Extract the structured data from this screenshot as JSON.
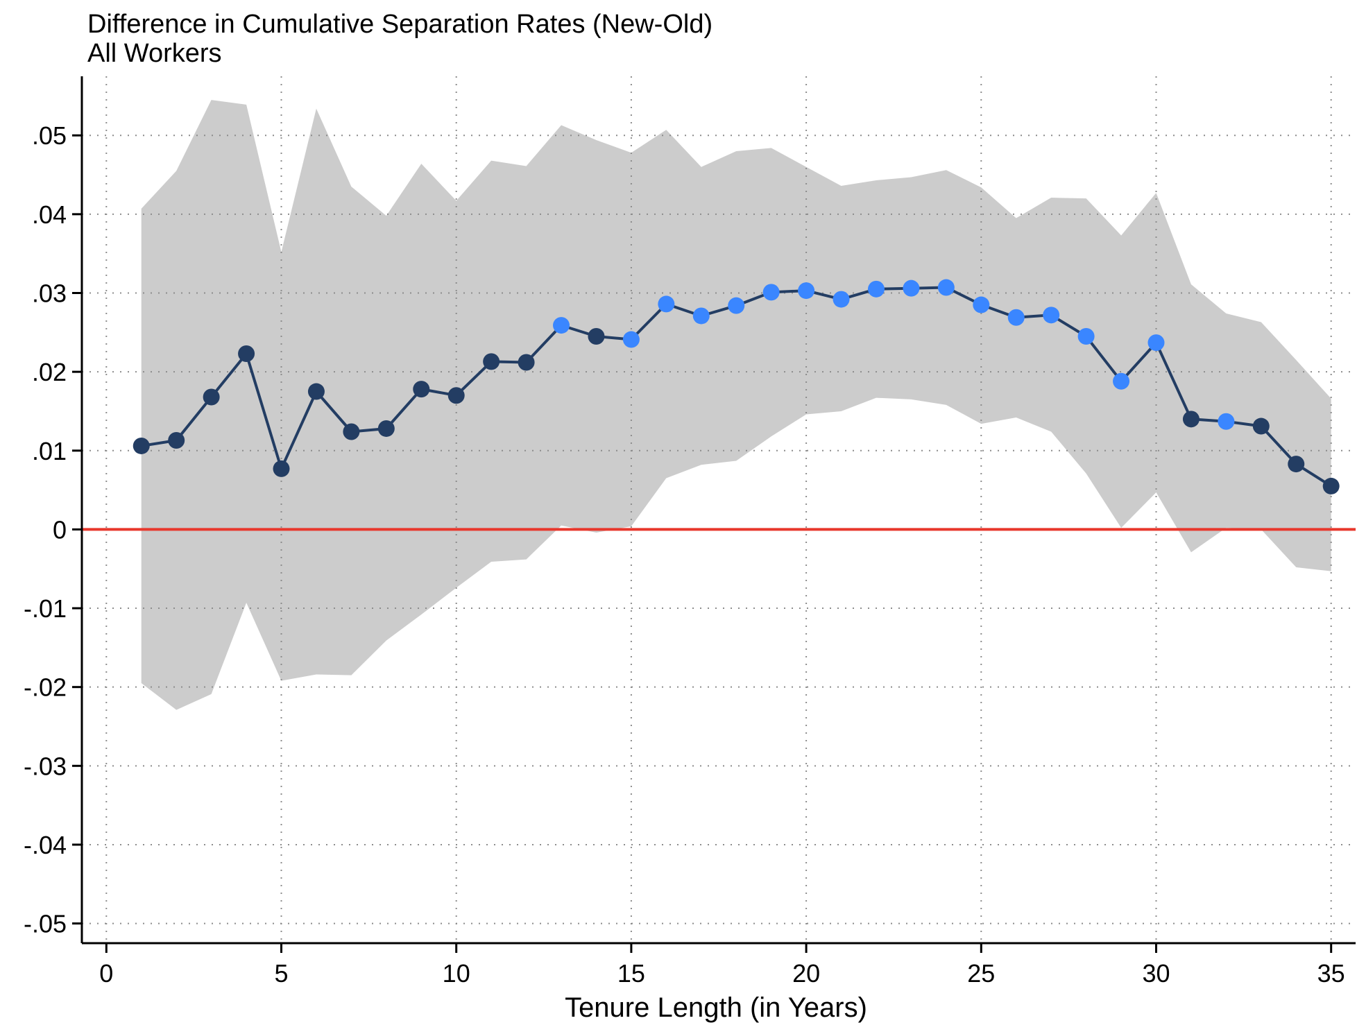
{
  "chart_data": {
    "type": "line",
    "title": "Difference in Cumulative Separation Rates (New-Old)",
    "subtitle": "All Workers",
    "xlabel": "Tenure Length (in Years)",
    "ylabel": "",
    "xlim": [
      -0.7,
      35.7
    ],
    "ylim": [
      -0.0525,
      0.0575
    ],
    "x_ticks": [
      0,
      5,
      10,
      15,
      20,
      25,
      30,
      35
    ],
    "x_tick_labels": [
      "0",
      "5",
      "10",
      "15",
      "20",
      "25",
      "30",
      "35"
    ],
    "y_ticks": [
      0.05,
      0.04,
      0.03,
      0.02,
      0.01,
      0,
      -0.01,
      -0.02,
      -0.03,
      -0.04,
      -0.05
    ],
    "y_tick_labels": [
      ".05",
      ".04",
      ".03",
      ".02",
      ".01",
      "0",
      "-.01",
      "-.02",
      "-.03",
      "-.04",
      "-.05"
    ],
    "grid": true,
    "reference_line": {
      "y": 0,
      "color": "#e8372c"
    },
    "series": [
      {
        "x": [
          1,
          2,
          3,
          4,
          5,
          6,
          7,
          8,
          9,
          10,
          11,
          12,
          13,
          14,
          15,
          16,
          17,
          18,
          19,
          20,
          21,
          22,
          23,
          24,
          25,
          26,
          27,
          28,
          29,
          30,
          31,
          32,
          33,
          34,
          35
        ],
        "values": [
          0.0106,
          0.0113,
          0.0168,
          0.0223,
          0.0077,
          0.0175,
          0.0124,
          0.0128,
          0.0178,
          0.017,
          0.0213,
          0.0212,
          0.0259,
          0.0245,
          0.0241,
          0.0286,
          0.0271,
          0.0284,
          0.0301,
          0.0303,
          0.0292,
          0.0305,
          0.0306,
          0.0307,
          0.0285,
          0.0269,
          0.0272,
          0.0245,
          0.0188,
          0.0237,
          0.014,
          0.0137,
          0.0131,
          0.0083,
          0.0055
        ],
        "ci_upper": [
          0.0407,
          0.0455,
          0.0545,
          0.0539,
          0.0352,
          0.0534,
          0.0435,
          0.0398,
          0.0464,
          0.0417,
          0.0468,
          0.0461,
          0.0513,
          0.0494,
          0.0478,
          0.0507,
          0.046,
          0.048,
          0.0484,
          0.046,
          0.0436,
          0.0443,
          0.0447,
          0.0456,
          0.0434,
          0.0395,
          0.0421,
          0.042,
          0.0373,
          0.0427,
          0.0311,
          0.0274,
          0.0263,
          0.0215,
          0.0166
        ],
        "ci_lower": [
          -0.0195,
          -0.0229,
          -0.0209,
          -0.0093,
          -0.0192,
          -0.0184,
          -0.0185,
          -0.0141,
          -0.0108,
          -0.0074,
          -0.0041,
          -0.0038,
          0.0005,
          -0.0004,
          0.0004,
          0.0065,
          0.0082,
          0.0087,
          0.0118,
          0.0146,
          0.015,
          0.0167,
          0.0165,
          0.0158,
          0.0134,
          0.0142,
          0.0124,
          0.0071,
          0.0002,
          0.0047,
          -0.0029,
          0.0002,
          0.0,
          -0.0048,
          -0.0053
        ],
        "significant": [
          false,
          false,
          false,
          false,
          false,
          false,
          false,
          false,
          false,
          false,
          false,
          false,
          true,
          false,
          true,
          true,
          true,
          true,
          true,
          true,
          true,
          true,
          true,
          true,
          true,
          true,
          true,
          true,
          true,
          true,
          false,
          true,
          false,
          false,
          false
        ]
      }
    ],
    "colors": {
      "line": "#233d63",
      "marker_insignificant": "#233d63",
      "marker_significant": "#3a86ff",
      "ci_band": "#cccccc",
      "zero_line": "#e8372c",
      "grid": "#8c8c8c",
      "axis": "#000000"
    }
  }
}
